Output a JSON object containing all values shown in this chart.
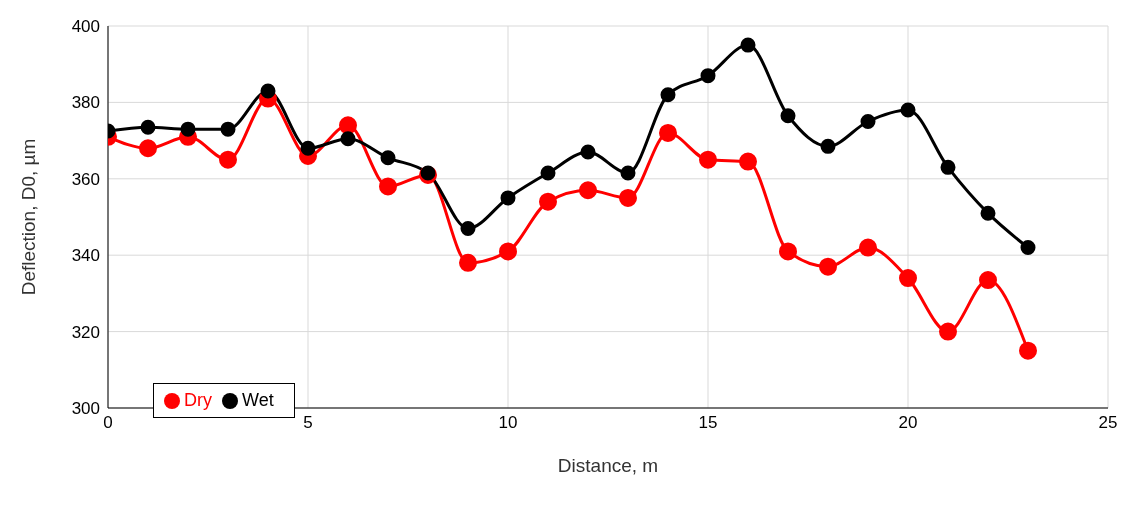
{
  "chart_data": {
    "type": "line",
    "xlabel": "Distance, m",
    "ylabel": "Deflection, D0, µm",
    "x": [
      0,
      1,
      2,
      3,
      4,
      5,
      6,
      7,
      8,
      9,
      10,
      11,
      12,
      13,
      14,
      15,
      16,
      17,
      18,
      19,
      20,
      21,
      22,
      23
    ],
    "series": [
      {
        "name": "Dry",
        "color": "#ff0000",
        "values": [
          371,
          368,
          371,
          365,
          381,
          366,
          374,
          358,
          361,
          338,
          341,
          354,
          357,
          355,
          372,
          365,
          364.5,
          341,
          337,
          342,
          334,
          320,
          333.5,
          315
        ]
      },
      {
        "name": "Wet",
        "color": "#000000",
        "values": [
          372.5,
          373.5,
          373,
          373,
          383,
          368,
          370.5,
          365.5,
          361.5,
          347,
          355,
          361.5,
          367,
          361.5,
          382,
          387,
          395,
          376.5,
          368.5,
          375,
          378,
          363,
          351,
          342
        ]
      }
    ],
    "xlim": [
      0,
      25
    ],
    "xticks": [
      0,
      5,
      10,
      15,
      20,
      25
    ],
    "ylim": [
      300,
      400
    ],
    "yticks": [
      300,
      320,
      340,
      360,
      380,
      400
    ],
    "grid": true,
    "legend": "bottom left",
    "marker": "circle",
    "line_style": "solid"
  }
}
